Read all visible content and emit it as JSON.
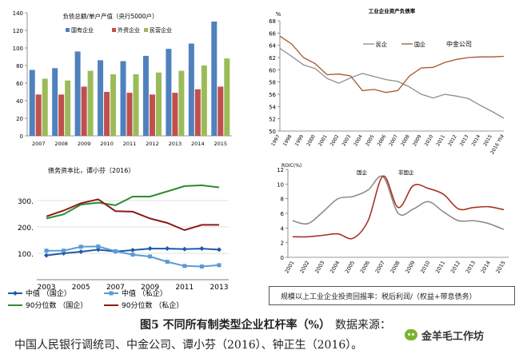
{
  "chart_data": [
    {
      "id": "c1",
      "type": "bar",
      "title": "负债总额/单户产值（央行5000户）",
      "categories": [
        "2007",
        "2008",
        "2009",
        "2010",
        "2011",
        "2012",
        "2013",
        "2014",
        "2015"
      ],
      "ylim": [
        0,
        140
      ],
      "yticks": [
        0,
        20,
        40,
        60,
        80,
        100,
        120,
        140
      ],
      "legend_position": "top",
      "series": [
        {
          "name": "国有企业",
          "color": "#4f81bd",
          "values": [
            75,
            77,
            96,
            86,
            85,
            91,
            99,
            105,
            130
          ]
        },
        {
          "name": "外资企业",
          "color": "#c0504d",
          "values": [
            47,
            47,
            56,
            50,
            49,
            47,
            49,
            53,
            56
          ]
        },
        {
          "name": "民营企业",
          "color": "#9bbb59",
          "values": [
            65,
            63,
            74,
            70,
            70,
            72,
            74,
            80,
            88
          ]
        }
      ]
    },
    {
      "id": "c2",
      "type": "line",
      "title": "工业企业资产负债率",
      "ylabel": "%",
      "categories": [
        "1997",
        "1998",
        "1999",
        "2000",
        "2001",
        "2002",
        "2003",
        "2004",
        "2005",
        "2006",
        "2007",
        "2008",
        "2009",
        "2010",
        "2011",
        "2012",
        "2013",
        "2014",
        "2015",
        "2016 Ytd"
      ],
      "ylim": [
        50,
        68
      ],
      "yticks": [
        50,
        52,
        54,
        56,
        58,
        60,
        62,
        64,
        66,
        68
      ],
      "annotation": "中金公司",
      "legend_position": "top",
      "series": [
        {
          "name": "民企",
          "color": "#8c8c8c",
          "values": [
            63.5,
            62.2,
            60.8,
            60.2,
            58.6,
            57.8,
            58.7,
            59.4,
            58.9,
            58.4,
            58.1,
            57.2,
            56.0,
            55.4,
            56.0,
            55.7,
            55.3,
            54.2,
            53.2,
            52.1
          ]
        },
        {
          "name": "国企",
          "color": "#a5542e",
          "values": [
            65.5,
            64.2,
            62.0,
            61.0,
            59.2,
            59.3,
            59.0,
            56.6,
            56.8,
            56.3,
            56.6,
            59.0,
            60.3,
            60.4,
            61.2,
            61.7,
            62.0,
            62.1,
            62.1,
            62.2
          ]
        }
      ]
    },
    {
      "id": "c3",
      "type": "line",
      "title": "债务资本比，谭小芬（2016）",
      "categories": [
        "2003",
        "2004",
        "2005",
        "2006",
        "2007",
        "2008",
        "2009",
        "2010",
        "2011",
        "2012",
        "2013"
      ],
      "xticks": [
        "2003",
        "2005",
        "2007",
        "2009",
        "2011",
        "2013"
      ],
      "ylim": [
        0,
        400
      ],
      "yticks": [
        {
          "v": 100,
          "label": "100."
        },
        {
          "v": 200,
          "label": "200."
        },
        {
          "v": 300,
          "label": "300."
        }
      ],
      "legend_position": "bottom",
      "series": [
        {
          "name": "中值 （国企）",
          "color": "#1f5aa8",
          "marker": "diamond",
          "values": [
            92,
            100,
            106,
            114,
            107,
            112,
            118,
            118,
            116,
            118,
            114
          ]
        },
        {
          "name": "中值 （私企）",
          "color": "#5a9bd5",
          "marker": "square",
          "values": [
            110,
            110,
            125,
            126,
            108,
            95,
            88,
            68,
            52,
            50,
            55
          ]
        },
        {
          "name": "90分位数 （国企）",
          "color": "#2e8b2e",
          "marker": "none",
          "values": [
            232,
            248,
            285,
            292,
            282,
            315,
            315,
            335,
            355,
            358,
            350
          ]
        },
        {
          "name": "90分位数 （私企）",
          "color": "#8b1a1a",
          "marker": "none",
          "values": [
            240,
            262,
            290,
            305,
            260,
            258,
            232,
            215,
            188,
            208,
            208
          ]
        }
      ]
    },
    {
      "id": "c4",
      "type": "line",
      "title": "ROIC(%)",
      "categories": [
        "2001",
        "2002",
        "2003",
        "2004",
        "2005",
        "2006",
        "2007",
        "2008",
        "2009",
        "2010",
        "2011",
        "2012",
        "2013",
        "2014",
        "2015"
      ],
      "ylim": [
        0,
        12
      ],
      "yticks": [
        0,
        2,
        4,
        6,
        8,
        10,
        12
      ],
      "legend_position": "top",
      "note": "规模以上工业企业投资回报率：税后利润/（权益+带息债务）",
      "series": [
        {
          "name": "国企",
          "color": "#8c8c8c",
          "values": [
            5.0,
            4.6,
            6.2,
            8.0,
            8.3,
            9.2,
            11.0,
            6.0,
            6.6,
            7.6,
            6.2,
            5.0,
            5.0,
            4.6,
            3.8
          ]
        },
        {
          "name": "非国企",
          "color": "#a93226",
          "values": [
            2.8,
            2.8,
            3.0,
            3.2,
            2.6,
            5.0,
            11.1,
            6.8,
            9.8,
            9.4,
            8.6,
            6.6,
            6.8,
            6.9,
            6.5
          ]
        }
      ]
    }
  ],
  "caption": {
    "figure": "图5 不同所有制类型企业杠杆率（%）",
    "source_label": "数据来源：",
    "sources": "中国人民银行调统司、中金公司、谭小芬（2016）、钟正生（2016）。"
  },
  "watermark": "金羊毛工作坊"
}
